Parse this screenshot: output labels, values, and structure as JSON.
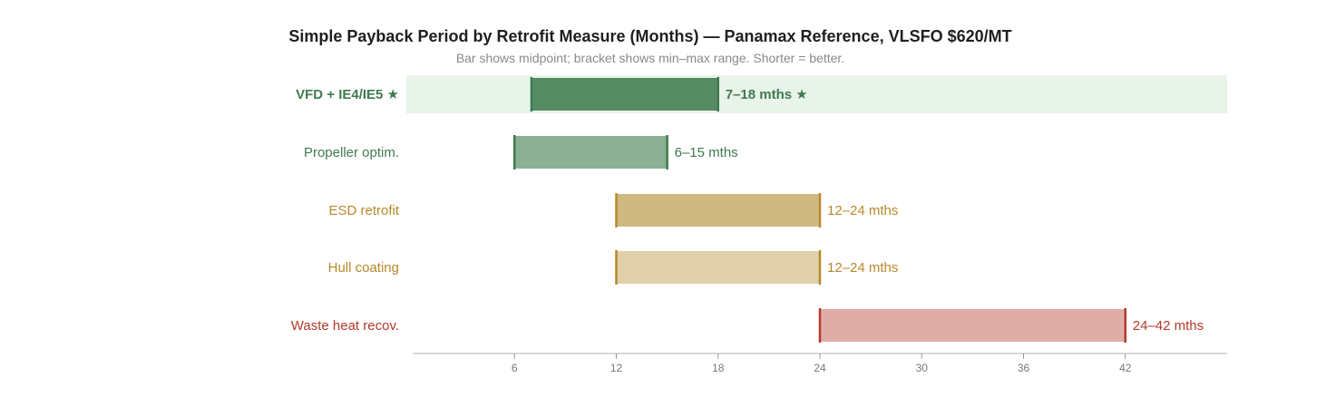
{
  "chart_data": {
    "type": "bar",
    "subtype": "horizontal-range",
    "title": "Simple Payback Period by Retrofit Measure (Months) — Panamax Reference, VLSFO $620/MT",
    "subtitle": "Bar shows midpoint; bracket shows min–max range. Shorter = better.",
    "xlabel": "",
    "ylabel": "",
    "xlim": [
      0,
      48
    ],
    "xticks": [
      6,
      12,
      18,
      24,
      30,
      36,
      42
    ],
    "series": [
      {
        "name": "VFD + IE4/IE5 ★",
        "min": 7,
        "max": 18,
        "label": "7–18 mths ★",
        "highlight": true
      },
      {
        "name": "Propeller optim.",
        "min": 6,
        "max": 15,
        "label": "6–15 mths",
        "highlight": false
      },
      {
        "name": "ESD retrofit",
        "min": 12,
        "max": 24,
        "label": "12–24 mths",
        "highlight": false
      },
      {
        "name": "Hull coating",
        "min": 12,
        "max": 24,
        "label": "12–24 mths",
        "highlight": false
      },
      {
        "name": "Waste heat recov.",
        "min": 24,
        "max": 42,
        "label": "24–42 mths",
        "highlight": false
      }
    ],
    "colors": {
      "highlight_band": "#e8f3ea",
      "axis": "#cccccc",
      "tick_text": "#777777",
      "rows": [
        {
          "fill": "#558b63",
          "stroke": "#3f7a4f",
          "text": "#3f7a4f"
        },
        {
          "fill": "#8bb096",
          "stroke": "#3f7a4f",
          "text": "#3f7a4f"
        },
        {
          "fill": "#cfb983",
          "stroke": "#b8892c",
          "text": "#b8892c"
        },
        {
          "fill": "#dfd0ab",
          "stroke": "#b8892c",
          "text": "#b8892c"
        },
        {
          "fill": "#dfada7",
          "stroke": "#b5392b",
          "text": "#b5392b"
        }
      ]
    }
  }
}
